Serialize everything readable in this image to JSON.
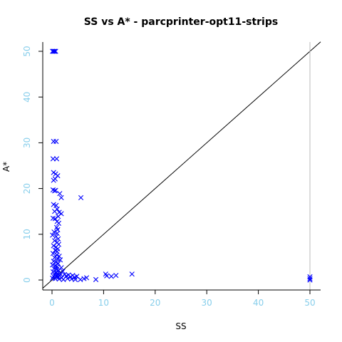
{
  "chart_data": {
    "type": "scatter",
    "title": "SS vs A* - parcprinter-opt11-strips",
    "xlabel": "SS",
    "ylabel": "A*",
    "xlim": [
      0,
      50
    ],
    "ylim": [
      0,
      50
    ],
    "x_ticks": [
      "0",
      "10",
      "20",
      "30",
      "40",
      "50"
    ],
    "y_ticks": [
      "0",
      "10",
      "20",
      "30",
      "40",
      "50"
    ],
    "tick_label_color": "#87CEEB",
    "point_color": "#0000FF",
    "reference_lines": [
      "y = x",
      "x = 50"
    ],
    "points": [
      {
        "x": 0.1,
        "y": 50
      },
      {
        "x": 0.3,
        "y": 50
      },
      {
        "x": 0.5,
        "y": 50
      },
      {
        "x": 0.7,
        "y": 50
      },
      {
        "x": 0.3,
        "y": 30.3
      },
      {
        "x": 0.8,
        "y": 30.3
      },
      {
        "x": 0.2,
        "y": 26.5
      },
      {
        "x": 0.9,
        "y": 26.5
      },
      {
        "x": 0.3,
        "y": 23.5
      },
      {
        "x": 0.7,
        "y": 23.2
      },
      {
        "x": 1.1,
        "y": 22.8
      },
      {
        "x": 0.6,
        "y": 22.1
      },
      {
        "x": 0.3,
        "y": 21.8
      },
      {
        "x": 0.2,
        "y": 19.7
      },
      {
        "x": 0.5,
        "y": 19.5
      },
      {
        "x": 0.7,
        "y": 19.6
      },
      {
        "x": 1.5,
        "y": 18.9
      },
      {
        "x": 1.8,
        "y": 18.0
      },
      {
        "x": 5.6,
        "y": 18.0
      },
      {
        "x": 0.3,
        "y": 16.5
      },
      {
        "x": 0.8,
        "y": 16.3
      },
      {
        "x": 1.0,
        "y": 15.5
      },
      {
        "x": 0.5,
        "y": 15.0
      },
      {
        "x": 1.4,
        "y": 14.8
      },
      {
        "x": 1.8,
        "y": 14.5
      },
      {
        "x": 1.2,
        "y": 13.9
      },
      {
        "x": 0.2,
        "y": 13.5
      },
      {
        "x": 0.6,
        "y": 13.4
      },
      {
        "x": 1.0,
        "y": 12.8
      },
      {
        "x": 1.3,
        "y": 12.4
      },
      {
        "x": 0.9,
        "y": 11.5
      },
      {
        "x": 1.1,
        "y": 11.0
      },
      {
        "x": 0.4,
        "y": 10.5
      },
      {
        "x": 1.0,
        "y": 10.2
      },
      {
        "x": 0.1,
        "y": 9.8
      },
      {
        "x": 0.8,
        "y": 9.5
      },
      {
        "x": 1.2,
        "y": 9.0
      },
      {
        "x": 0.5,
        "y": 8.6
      },
      {
        "x": 1.0,
        "y": 8.2
      },
      {
        "x": 1.3,
        "y": 7.8
      },
      {
        "x": 0.3,
        "y": 7.5
      },
      {
        "x": 0.8,
        "y": 7.2
      },
      {
        "x": 1.1,
        "y": 6.8
      },
      {
        "x": 0.6,
        "y": 6.5
      },
      {
        "x": 1.0,
        "y": 6.2
      },
      {
        "x": 0.2,
        "y": 5.8
      },
      {
        "x": 0.9,
        "y": 5.5
      },
      {
        "x": 1.4,
        "y": 5.2
      },
      {
        "x": 0.5,
        "y": 4.9
      },
      {
        "x": 1.1,
        "y": 4.6
      },
      {
        "x": 1.6,
        "y": 4.4
      },
      {
        "x": 0.3,
        "y": 4.1
      },
      {
        "x": 0.8,
        "y": 3.9
      },
      {
        "x": 1.2,
        "y": 3.6
      },
      {
        "x": 0.1,
        "y": 3.3
      },
      {
        "x": 0.6,
        "y": 3.1
      },
      {
        "x": 1.0,
        "y": 2.9
      },
      {
        "x": 1.8,
        "y": 2.7
      },
      {
        "x": 0.4,
        "y": 2.5
      },
      {
        "x": 0.9,
        "y": 2.3
      },
      {
        "x": 1.3,
        "y": 2.1
      },
      {
        "x": 2.1,
        "y": 1.9
      },
      {
        "x": 0.2,
        "y": 1.8
      },
      {
        "x": 0.7,
        "y": 1.6
      },
      {
        "x": 1.1,
        "y": 1.4
      },
      {
        "x": 1.6,
        "y": 1.3
      },
      {
        "x": 2.4,
        "y": 1.2
      },
      {
        "x": 0.5,
        "y": 1.1
      },
      {
        "x": 1.0,
        "y": 1.0
      },
      {
        "x": 1.5,
        "y": 0.9
      },
      {
        "x": 0.3,
        "y": 0.8
      },
      {
        "x": 0.8,
        "y": 0.7
      },
      {
        "x": 1.2,
        "y": 0.6
      },
      {
        "x": 1.9,
        "y": 0.5
      },
      {
        "x": 0.1,
        "y": 0.4
      },
      {
        "x": 0.6,
        "y": 0.3
      },
      {
        "x": 1.4,
        "y": 0.2
      },
      {
        "x": 2.2,
        "y": 0.1
      },
      {
        "x": 2.8,
        "y": 0.9
      },
      {
        "x": 3.2,
        "y": 1.1
      },
      {
        "x": 3.6,
        "y": 0.7
      },
      {
        "x": 4.0,
        "y": 1.0
      },
      {
        "x": 4.4,
        "y": 0.6
      },
      {
        "x": 4.8,
        "y": 0.8
      },
      {
        "x": 3.0,
        "y": 0.3
      },
      {
        "x": 3.8,
        "y": 0.2
      },
      {
        "x": 4.5,
        "y": 0.1
      },
      {
        "x": 5.5,
        "y": 0.1
      },
      {
        "x": 6.2,
        "y": 0.3
      },
      {
        "x": 6.7,
        "y": 0.5
      },
      {
        "x": 8.5,
        "y": 0.1
      },
      {
        "x": 10.4,
        "y": 1.3
      },
      {
        "x": 10.6,
        "y": 0.9
      },
      {
        "x": 11.5,
        "y": 0.8
      },
      {
        "x": 12.4,
        "y": 1.0
      },
      {
        "x": 15.5,
        "y": 1.3
      },
      {
        "x": 50,
        "y": 0.0
      },
      {
        "x": 50,
        "y": 0.3
      },
      {
        "x": 50,
        "y": 0.7
      }
    ]
  }
}
